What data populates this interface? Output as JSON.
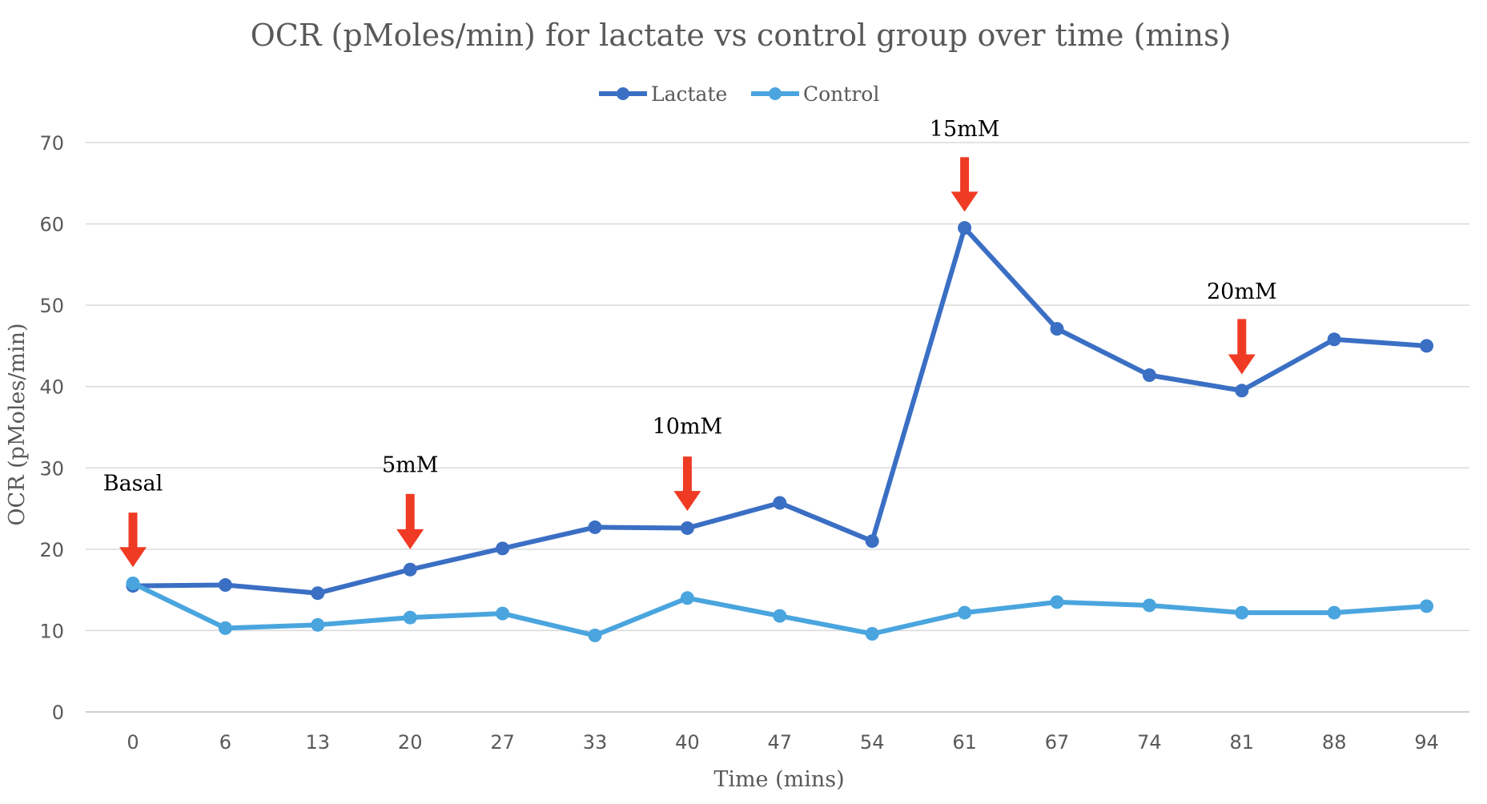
{
  "colors": {
    "lactate": "#3A6FC4",
    "control": "#4AA5DE",
    "arrow": "#EF3B24",
    "grid": "#D9D9D9",
    "axis": "#BFBFBF"
  },
  "chart_data": {
    "type": "line",
    "title": "OCR (pMoles/min) for lactate vs control group over time (mins)",
    "xlabel": "Time (mins)",
    "ylabel": "OCR (pMoles/min)",
    "categories": [
      "0",
      "6",
      "13",
      "20",
      "27",
      "33",
      "40",
      "47",
      "54",
      "61",
      "67",
      "74",
      "81",
      "88",
      "94"
    ],
    "ylim": [
      0,
      70
    ],
    "yticks": [
      "0",
      "10",
      "20",
      "30",
      "40",
      "50",
      "60",
      "70"
    ],
    "grid": true,
    "legend_position": "top-center",
    "series": [
      {
        "name": "Lactate",
        "color": "#3A6FC4",
        "values": [
          15.5,
          15.6,
          14.6,
          17.5,
          20.1,
          22.7,
          22.6,
          25.7,
          21.0,
          59.5,
          47.1,
          41.4,
          39.5,
          45.8,
          45.0
        ]
      },
      {
        "name": "Control",
        "color": "#4AA5DE",
        "values": [
          15.8,
          10.3,
          10.7,
          11.6,
          12.1,
          9.4,
          14.0,
          11.8,
          9.6,
          12.2,
          13.5,
          13.1,
          12.2,
          12.2,
          13.0
        ]
      }
    ],
    "annotations": [
      {
        "text": "Basal",
        "category_index": 0,
        "arrow_tip_value": 17.8,
        "arrow_top_value": 24.5,
        "label_value": 27.2
      },
      {
        "text": "5mM",
        "category_index": 3,
        "arrow_tip_value": 20.0,
        "arrow_top_value": 26.8,
        "label_value": 29.5
      },
      {
        "text": "10mM",
        "category_index": 6,
        "arrow_tip_value": 24.7,
        "arrow_top_value": 31.4,
        "label_value": 34.2
      },
      {
        "text": "15mM",
        "category_index": 9,
        "arrow_tip_value": 61.5,
        "arrow_top_value": 68.2,
        "label_value": 70.8
      },
      {
        "text": "20mM",
        "category_index": 12,
        "arrow_tip_value": 41.5,
        "arrow_top_value": 48.3,
        "label_value": 50.8
      }
    ]
  }
}
